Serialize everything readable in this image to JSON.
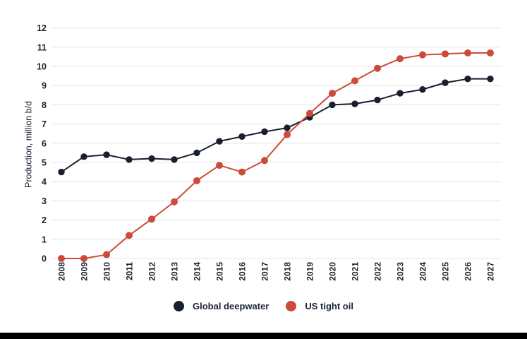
{
  "chart_data": {
    "type": "line",
    "title": "",
    "xlabel": "",
    "ylabel": "Production, million b/d",
    "x": [
      "2008",
      "2009",
      "2010",
      "2011",
      "2012",
      "2013",
      "2014",
      "2015",
      "2016",
      "2017",
      "2018",
      "2019",
      "2020",
      "2021",
      "2022",
      "2023",
      "2024",
      "2025",
      "2026",
      "2027"
    ],
    "series": [
      {
        "name": "Global deepwater",
        "color": "#18202f",
        "marker": "circle",
        "marker_radius": 4.7,
        "values": [
          4.5,
          5.3,
          5.4,
          5.15,
          5.2,
          5.15,
          5.5,
          6.1,
          6.35,
          6.6,
          6.8,
          7.35,
          8.0,
          8.05,
          8.25,
          8.6,
          8.8,
          9.15,
          9.35,
          9.35
        ]
      },
      {
        "name": "US tight oil",
        "color": "#cd4a38",
        "marker": "circle",
        "marker_radius": 5.0,
        "values": [
          0,
          0,
          0.2,
          1.2,
          2.05,
          2.95,
          4.05,
          4.85,
          4.5,
          5.1,
          6.45,
          7.55,
          8.6,
          9.25,
          9.9,
          10.4,
          10.6,
          10.65,
          10.7,
          10.7
        ]
      }
    ],
    "ylim": [
      0,
      12
    ],
    "ytick_step": 1,
    "yticks": [
      0,
      1,
      2,
      3,
      4,
      5,
      6,
      7,
      8,
      9,
      10,
      11,
      12
    ],
    "grid": "horizontal-only",
    "legend_position": "bottom",
    "x_tick_rotation": -90
  },
  "colors": {
    "background": "#ffffff",
    "gridline": "#e4e4e4",
    "axis_text": "#1b2432",
    "footer_bar": "#000000"
  }
}
